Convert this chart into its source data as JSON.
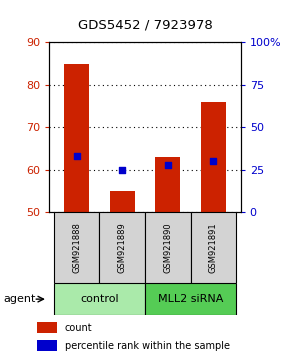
{
  "title": "GDS5452 / 7923978",
  "samples": [
    "GSM921888",
    "GSM921889",
    "GSM921890",
    "GSM921891"
  ],
  "bar_bottoms": [
    50,
    50,
    50,
    50
  ],
  "bar_tops": [
    85,
    55,
    63,
    76
  ],
  "percentile_values": [
    33,
    25,
    28,
    30
  ],
  "ylim_left": [
    50,
    90
  ],
  "ylim_right": [
    0,
    100
  ],
  "yticks_left": [
    50,
    60,
    70,
    80,
    90
  ],
  "yticks_right": [
    0,
    25,
    50,
    75,
    100
  ],
  "ytick_labels_right": [
    "0",
    "25",
    "50",
    "75",
    "100%"
  ],
  "bar_color": "#CC2200",
  "percentile_color": "#0000CC",
  "grid_color": "#000000",
  "group_info": [
    {
      "label": "control",
      "xmin": -0.5,
      "xmax": 1.5,
      "color": "#AAEAAA"
    },
    {
      "label": "MLL2 siRNA",
      "xmin": 1.5,
      "xmax": 3.5,
      "color": "#55CC55"
    }
  ],
  "agent_label": "agent"
}
